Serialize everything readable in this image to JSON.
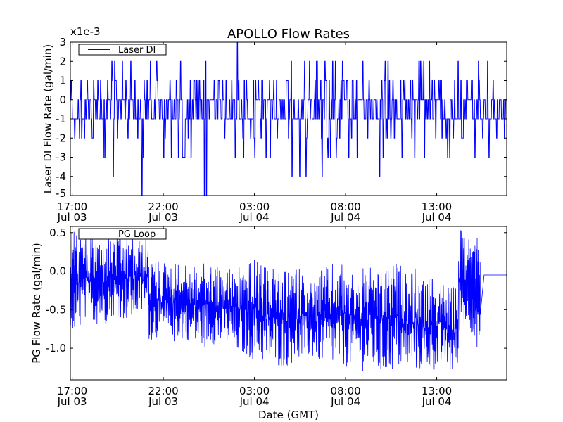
{
  "chart_data": [
    {
      "type": "line",
      "title": "APOLLO Flow Rates",
      "ylabel": "Laser DI Flow Rate (gal/min)",
      "xlabel": "",
      "y_multiplier": "x1e-3",
      "ylim": [
        -5,
        3
      ],
      "xlim_hours_from_jul03_1700": [
        -0.1,
        23.84
      ],
      "yticks": [
        "3",
        "2",
        "1",
        "0",
        "-1",
        "-2",
        "-3",
        "-4",
        "-5"
      ],
      "ytick_values": [
        3,
        2,
        1,
        0,
        -1,
        -2,
        -3,
        -4,
        -5
      ],
      "xticks": [
        {
          "hour": 0,
          "time": "17:00",
          "date": "Jul 03"
        },
        {
          "hour": 5,
          "time": "22:00",
          "date": "Jul 03"
        },
        {
          "hour": 10,
          "time": "03:00",
          "date": "Jul 04"
        },
        {
          "hour": 15,
          "time": "08:00",
          "date": "Jul 04"
        },
        {
          "hour": 20,
          "time": "13:00",
          "date": "Jul 04"
        }
      ],
      "legend": {
        "label": "Laser DI",
        "placement": "top-left"
      },
      "series_color": "#0000ff",
      "series": [
        {
          "name": "Laser DI",
          "envelope_bins_hours": [
            0,
            1,
            2,
            3,
            4,
            5,
            6,
            7,
            8,
            9,
            10,
            11,
            12,
            13,
            14,
            15,
            16,
            17,
            18,
            19,
            20,
            21,
            22,
            23
          ],
          "min": [
            -2,
            -3,
            -4,
            -5,
            -3,
            -3,
            -3,
            -5,
            -4,
            -3,
            -3,
            -3,
            -4,
            -4,
            -3,
            -3,
            -4,
            -3,
            -3,
            -3,
            -3,
            -3,
            -3,
            -3
          ],
          "max": [
            2,
            2,
            2,
            2,
            2,
            1,
            2,
            2,
            1,
            3,
            1,
            1,
            2,
            2,
            2,
            1,
            2,
            2,
            1,
            2,
            1,
            2,
            2,
            1
          ]
        }
      ]
    },
    {
      "type": "line",
      "title": "",
      "ylabel": "PG Flow Rate (gal/min)",
      "xlabel": "Date (GMT)",
      "ylim": [
        -1.41,
        0.58
      ],
      "xlim_hours_from_jul03_1700": [
        -0.1,
        23.84
      ],
      "yticks": [
        "0.5",
        "0.0",
        "-0.5",
        "-1.0"
      ],
      "ytick_values": [
        0.5,
        0.0,
        -0.5,
        -1.0
      ],
      "xticks": [
        {
          "hour": 0,
          "time": "17:00",
          "date": "Jul 03"
        },
        {
          "hour": 5,
          "time": "22:00",
          "date": "Jul 03"
        },
        {
          "hour": 10,
          "time": "03:00",
          "date": "Jul 04"
        },
        {
          "hour": 15,
          "time": "08:00",
          "date": "Jul 04"
        },
        {
          "hour": 20,
          "time": "13:00",
          "date": "Jul 04"
        }
      ],
      "legend": {
        "label": "PG Loop",
        "placement": "top-left"
      },
      "series_color": "#0000ff",
      "series": [
        {
          "name": "PG Loop",
          "envelope_bin_hours": [
            0.3,
            1.1,
            1.9,
            2.6,
            3.4,
            4.2,
            4.9,
            5.7,
            6.5,
            7.3,
            8.0,
            8.8,
            9.6,
            10.4,
            11.1,
            11.9,
            12.7,
            13.5,
            14.2,
            15.0,
            15.8,
            16.6,
            17.3,
            18.1,
            18.9,
            19.7,
            20.4,
            21.2,
            22.0,
            22.4
          ],
          "min": [
            -0.8,
            -0.75,
            -0.7,
            -0.6,
            -0.65,
            -0.6,
            -0.9,
            -0.95,
            -0.9,
            -1.0,
            -0.95,
            -1.0,
            -1.1,
            -1.15,
            -1.2,
            -1.25,
            -1.2,
            -1.15,
            -1.2,
            -1.25,
            -1.25,
            -1.3,
            -1.35,
            -1.3,
            -1.3,
            -1.3,
            -1.3,
            -1.35,
            -0.8,
            -1.0
          ],
          "max": [
            0.55,
            0.5,
            0.45,
            0.45,
            0.45,
            0.42,
            0.15,
            0.15,
            0.1,
            0.1,
            0.1,
            0.05,
            0.1,
            0.15,
            0.05,
            0.0,
            0.05,
            -0.1,
            0.05,
            0.1,
            0.0,
            0.05,
            0.05,
            0.1,
            0.05,
            -0.1,
            -0.1,
            -0.2,
            0.55,
            0.5
          ],
          "flat_after_hour": 22.6,
          "flat_value": -0.05
        }
      ]
    }
  ]
}
